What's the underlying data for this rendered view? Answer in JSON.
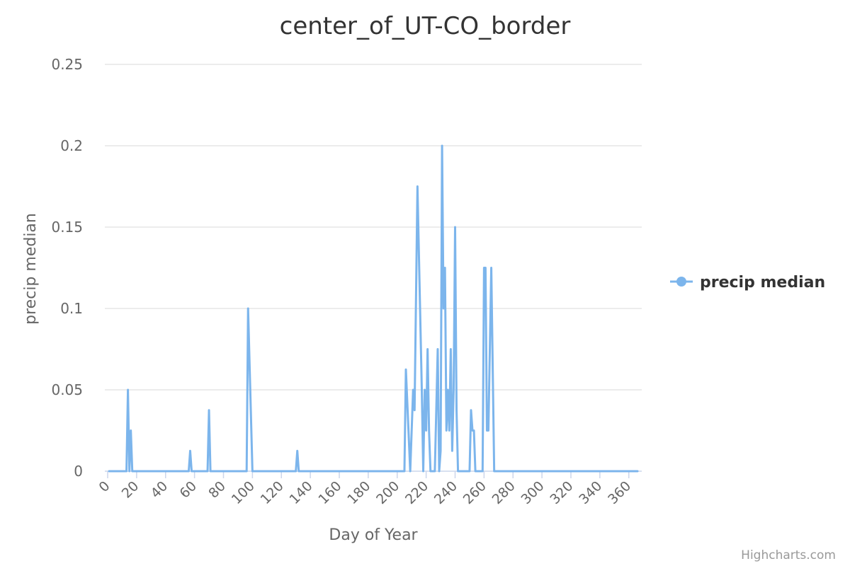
{
  "chart_data": {
    "type": "line",
    "title": "center_of_UT-CO_border",
    "xlabel": "Day of Year",
    "ylabel": "precip median",
    "xlim": [
      0,
      366
    ],
    "ylim": [
      0,
      0.25
    ],
    "x_ticks": [
      "0",
      "20",
      "40",
      "60",
      "80",
      "100",
      "120",
      "140",
      "160",
      "180",
      "200",
      "220",
      "240",
      "260",
      "280",
      "300",
      "320",
      "340",
      "360"
    ],
    "y_ticks": [
      "0",
      "0.05",
      "0.1",
      "0.15",
      "0.2",
      "0.25"
    ],
    "grid": true,
    "legend_position": "right",
    "series": [
      {
        "name": "precip median",
        "color": "#7cb5ec",
        "points": [
          [
            1,
            0
          ],
          [
            13,
            0
          ],
          [
            14,
            0.05
          ],
          [
            15,
            0
          ],
          [
            16,
            0.025
          ],
          [
            17,
            0
          ],
          [
            56,
            0
          ],
          [
            57,
            0.0125
          ],
          [
            58,
            0
          ],
          [
            69,
            0
          ],
          [
            70,
            0.0375
          ],
          [
            71,
            0
          ],
          [
            96,
            0
          ],
          [
            97,
            0.1
          ],
          [
            100,
            0
          ],
          [
            130,
            0
          ],
          [
            131,
            0.0125
          ],
          [
            132,
            0
          ],
          [
            205,
            0
          ],
          [
            206,
            0.0625
          ],
          [
            209,
            0
          ],
          [
            211,
            0.05
          ],
          [
            212,
            0.0375
          ],
          [
            214,
            0.175
          ],
          [
            217,
            0.05
          ],
          [
            218,
            0
          ],
          [
            219,
            0.05
          ],
          [
            220,
            0.025
          ],
          [
            221,
            0.075
          ],
          [
            222,
            0.025
          ],
          [
            223,
            0
          ],
          [
            226,
            0
          ],
          [
            228,
            0.075
          ],
          [
            229,
            0
          ],
          [
            230,
            0.0125
          ],
          [
            231,
            0.2
          ],
          [
            232,
            0.1
          ],
          [
            233,
            0.125
          ],
          [
            234,
            0.025
          ],
          [
            235,
            0.05
          ],
          [
            236,
            0.025
          ],
          [
            237,
            0.075
          ],
          [
            238,
            0.0125
          ],
          [
            239,
            0.05
          ],
          [
            240,
            0.15
          ],
          [
            241,
            0.0375
          ],
          [
            242,
            0
          ],
          [
            250,
            0
          ],
          [
            251,
            0.0375
          ],
          [
            252,
            0.025
          ],
          [
            253,
            0.025
          ],
          [
            254,
            0
          ],
          [
            259,
            0
          ],
          [
            260,
            0.125
          ],
          [
            261,
            0.125
          ],
          [
            262,
            0.025
          ],
          [
            263,
            0.025
          ],
          [
            265,
            0.125
          ],
          [
            267,
            0
          ],
          [
            366,
            0
          ]
        ]
      }
    ]
  },
  "credits": "Highcharts.com"
}
